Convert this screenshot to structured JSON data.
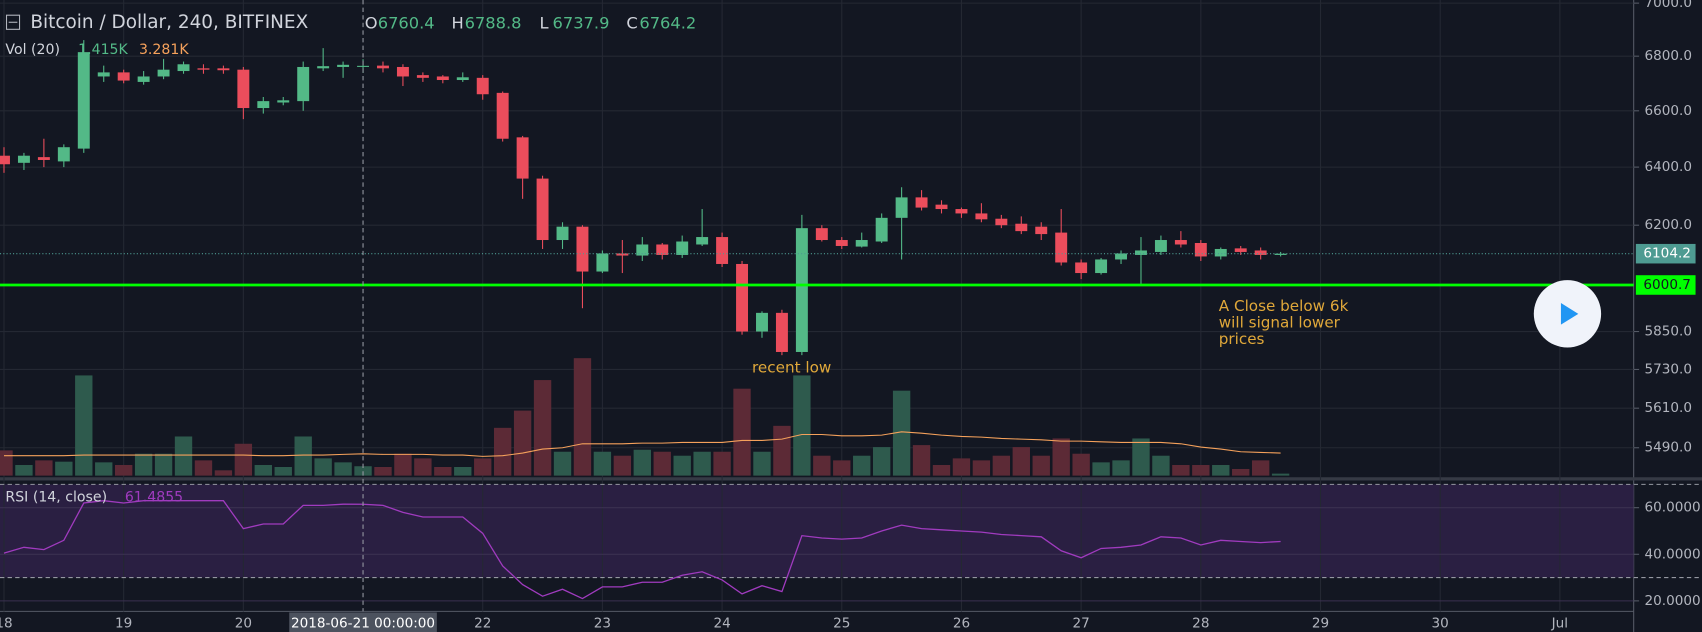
{
  "chart_data": [
    {
      "type": "candlestick",
      "title": "Bitcoin / Dollar, 240, BITFINEX",
      "ohlc_labels": [
        "O",
        "H",
        "L",
        "C"
      ],
      "up_color": "#53b987",
      "down_color": "#eb4d5c",
      "open": [
        6440,
        6415,
        6435,
        6420,
        6465,
        6725,
        6740,
        6705,
        6725,
        6745,
        6755,
        6755,
        6750,
        6610,
        6630,
        6635,
        6755,
        6760,
        6760.4,
        6765,
        6760,
        6730,
        6725,
        6712,
        6720,
        6665,
        6505,
        6360,
        6150,
        6195,
        6045,
        6105,
        6098,
        6135,
        6100,
        6135,
        6160,
        6070,
        5850,
        5910,
        5785,
        6190,
        6150,
        6128,
        6145,
        6225,
        6295,
        6270,
        6255,
        6240,
        6222,
        6205,
        6195,
        6175,
        6075,
        6040,
        6085,
        6100,
        6110,
        6150,
        6140,
        6095,
        6122,
        6115,
        6100
      ],
      "high": [
        6470,
        6450,
        6500,
        6480,
        6860,
        6765,
        6750,
        6745,
        6790,
        6780,
        6770,
        6765,
        6760,
        6650,
        6650,
        6780,
        6830,
        6780,
        6788.8,
        6780,
        6770,
        6740,
        6730,
        6740,
        6730,
        6670,
        6510,
        6370,
        6210,
        6200,
        6115,
        6150,
        6160,
        6140,
        6165,
        6255,
        6175,
        6080,
        5915,
        5920,
        6235,
        6200,
        6160,
        6175,
        6240,
        6330,
        6320,
        6285,
        6260,
        6275,
        6235,
        6230,
        6210,
        6255,
        6085,
        6090,
        6115,
        6160,
        6165,
        6180,
        6150,
        6125,
        6130,
        6125,
        6110
      ],
      "low": [
        6380,
        6390,
        6400,
        6400,
        6450,
        6705,
        6700,
        6695,
        6715,
        6735,
        6735,
        6735,
        6570,
        6590,
        6620,
        6600,
        6745,
        6720,
        6737.9,
        6740,
        6690,
        6705,
        6700,
        6705,
        6640,
        6490,
        6290,
        6120,
        6120,
        5925,
        6040,
        6040,
        6080,
        6085,
        6090,
        6130,
        6060,
        5840,
        5830,
        5775,
        5775,
        6145,
        6120,
        6125,
        6140,
        6085,
        6250,
        6240,
        6225,
        6210,
        6190,
        6170,
        6150,
        6065,
        6020,
        6035,
        6070,
        6000,
        6100,
        6125,
        6080,
        6085,
        6100,
        6085,
        6095
      ],
      "close": [
        6410,
        6440,
        6425,
        6470,
        6815,
        6740,
        6710,
        6725,
        6750,
        6770,
        6750,
        6748,
        6610,
        6635,
        6638,
        6760,
        6763,
        6768,
        6764.2,
        6755,
        6725,
        6720,
        6712,
        6722,
        6660,
        6500,
        6360,
        6150,
        6195,
        6045,
        6105,
        6098,
        6135,
        6100,
        6145,
        6160,
        6070,
        5850,
        5910,
        5785,
        6190,
        6150,
        6130,
        6150,
        6225,
        6295,
        6260,
        6255,
        6240,
        6220,
        6200,
        6180,
        6170,
        6075,
        6040,
        6085,
        6105,
        6115,
        6150,
        6135,
        6095,
        6120,
        6110,
        6100,
        6104.2
      ],
      "xlim": [
        -0.2,
        81.7
      ],
      "xticks": [
        {
          "value": 0,
          "label": "18"
        },
        {
          "value": 6,
          "label": "19"
        },
        {
          "value": 12,
          "label": "20"
        },
        {
          "value": 24,
          "label": "22"
        },
        {
          "value": 30,
          "label": "23"
        },
        {
          "value": 36,
          "label": "24"
        },
        {
          "value": 42,
          "label": "25"
        },
        {
          "value": 48,
          "label": "26"
        },
        {
          "value": 54,
          "label": "27"
        },
        {
          "value": 60,
          "label": "28"
        },
        {
          "value": 66,
          "label": "29"
        },
        {
          "value": 72,
          "label": "30"
        },
        {
          "value": 78,
          "label": "Jul"
        }
      ],
      "crosshair": {
        "x": 18,
        "label": "2018-06-21 00:00:00"
      },
      "log_scale": true,
      "ylim": [
        5407,
        7012
      ],
      "yticks": [
        {
          "value": 7000,
          "label": "7000.0"
        },
        {
          "value": 6800,
          "label": "6800.0"
        },
        {
          "value": 6600,
          "label": "6600.0"
        },
        {
          "value": 6400,
          "label": "6400.0"
        },
        {
          "value": 6200,
          "label": "6200.0"
        },
        {
          "value": 5850,
          "label": "5850.0"
        },
        {
          "value": 5730,
          "label": "5730.0"
        },
        {
          "value": 5610,
          "label": "5610.0"
        },
        {
          "value": 5490,
          "label": "5490.0"
        }
      ],
      "grid": true,
      "last_price_color": "#4e9b92",
      "hline": 6000.7,
      "hline_color": "#00ff00",
      "annotations": [
        {
          "lines": [
            "recent low"
          ],
          "x": 37.5,
          "y": 5735,
          "color": "#e0a83a"
        },
        {
          "lines": [
            "A Close below 6k",
            "will signal lower",
            "prices"
          ],
          "x": 60.9,
          "y": 5930,
          "color": "#e0a83a"
        }
      ]
    },
    {
      "type": "bar",
      "title": "Vol (20)",
      "value_label": "1.415K",
      "ma_label": "3.281K",
      "up_color": "#2e5a4d",
      "down_color": "#5c2a36",
      "ylim": [
        0,
        18
      ],
      "values": [
        3.8,
        1.6,
        2.3,
        2.1,
        15.1,
        2.0,
        1.6,
        3.3,
        3.3,
        5.9,
        2.3,
        0.8,
        4.8,
        1.6,
        1.3,
        5.9,
        2.6,
        2.0,
        1.415,
        1.3,
        3.3,
        2.6,
        1.3,
        1.3,
        2.6,
        7.2,
        9.8,
        14.4,
        3.6,
        17.7,
        3.6,
        3.0,
        3.9,
        3.6,
        3.0,
        3.6,
        3.6,
        13.1,
        3.6,
        7.5,
        15.1,
        3.0,
        2.3,
        3.0,
        4.3,
        12.8,
        4.6,
        1.6,
        2.6,
        2.3,
        3.0,
        4.3,
        3.0,
        5.6,
        3.3,
        2.0,
        2.3,
        5.6,
        3.0,
        1.6,
        1.6,
        1.6,
        1.0,
        2.3,
        0.3
      ],
      "ma": {
        "color": "#f5a15b",
        "values": [
          3.0,
          3.0,
          3.0,
          3.0,
          3.1,
          3.1,
          3.1,
          3.1,
          3.1,
          3.1,
          3.1,
          3.1,
          3.1,
          3.0,
          3.0,
          3.1,
          3.1,
          3.2,
          3.281,
          3.2,
          3.2,
          3.2,
          3.1,
          3.1,
          2.9,
          3.0,
          3.4,
          4.0,
          4.2,
          4.8,
          4.8,
          4.8,
          4.9,
          4.9,
          5.0,
          5.0,
          5.0,
          5.3,
          5.3,
          5.5,
          6.2,
          6.2,
          6.0,
          6.0,
          6.1,
          6.6,
          6.4,
          6.1,
          5.9,
          5.8,
          5.6,
          5.5,
          5.4,
          5.2,
          5.2,
          5.1,
          5.0,
          5.0,
          5.0,
          4.8,
          4.3,
          4.0,
          3.6,
          3.5,
          3.4
        ]
      }
    },
    {
      "type": "line",
      "title": "RSI (14, close)",
      "color": "#a03bbf",
      "values": [
        40.5,
        43,
        42,
        46,
        62,
        63,
        62,
        63,
        63,
        63,
        63,
        63,
        51,
        53,
        53,
        61,
        61,
        61.5,
        61.4855,
        61,
        58,
        56,
        56,
        56,
        49,
        35,
        27,
        22,
        25,
        21,
        26,
        26,
        28,
        28,
        31,
        32.5,
        29,
        23,
        26.5,
        24,
        48,
        47,
        46.5,
        47,
        50,
        52.5,
        51,
        50.5,
        50,
        49.5,
        48.5,
        48,
        47.5,
        41.5,
        38.5,
        42.5,
        43,
        44,
        47.5,
        47,
        44,
        46,
        45.5,
        45,
        45.5
      ],
      "ylim": [
        15.5,
        70.5
      ],
      "yticks": [
        {
          "value": 60,
          "label": "60.0000"
        },
        {
          "value": 40,
          "label": "40.0000"
        },
        {
          "value": 20,
          "label": "20.0000"
        }
      ],
      "bands": [
        70,
        30
      ],
      "band_fill": "#2a1f42"
    }
  ]
}
